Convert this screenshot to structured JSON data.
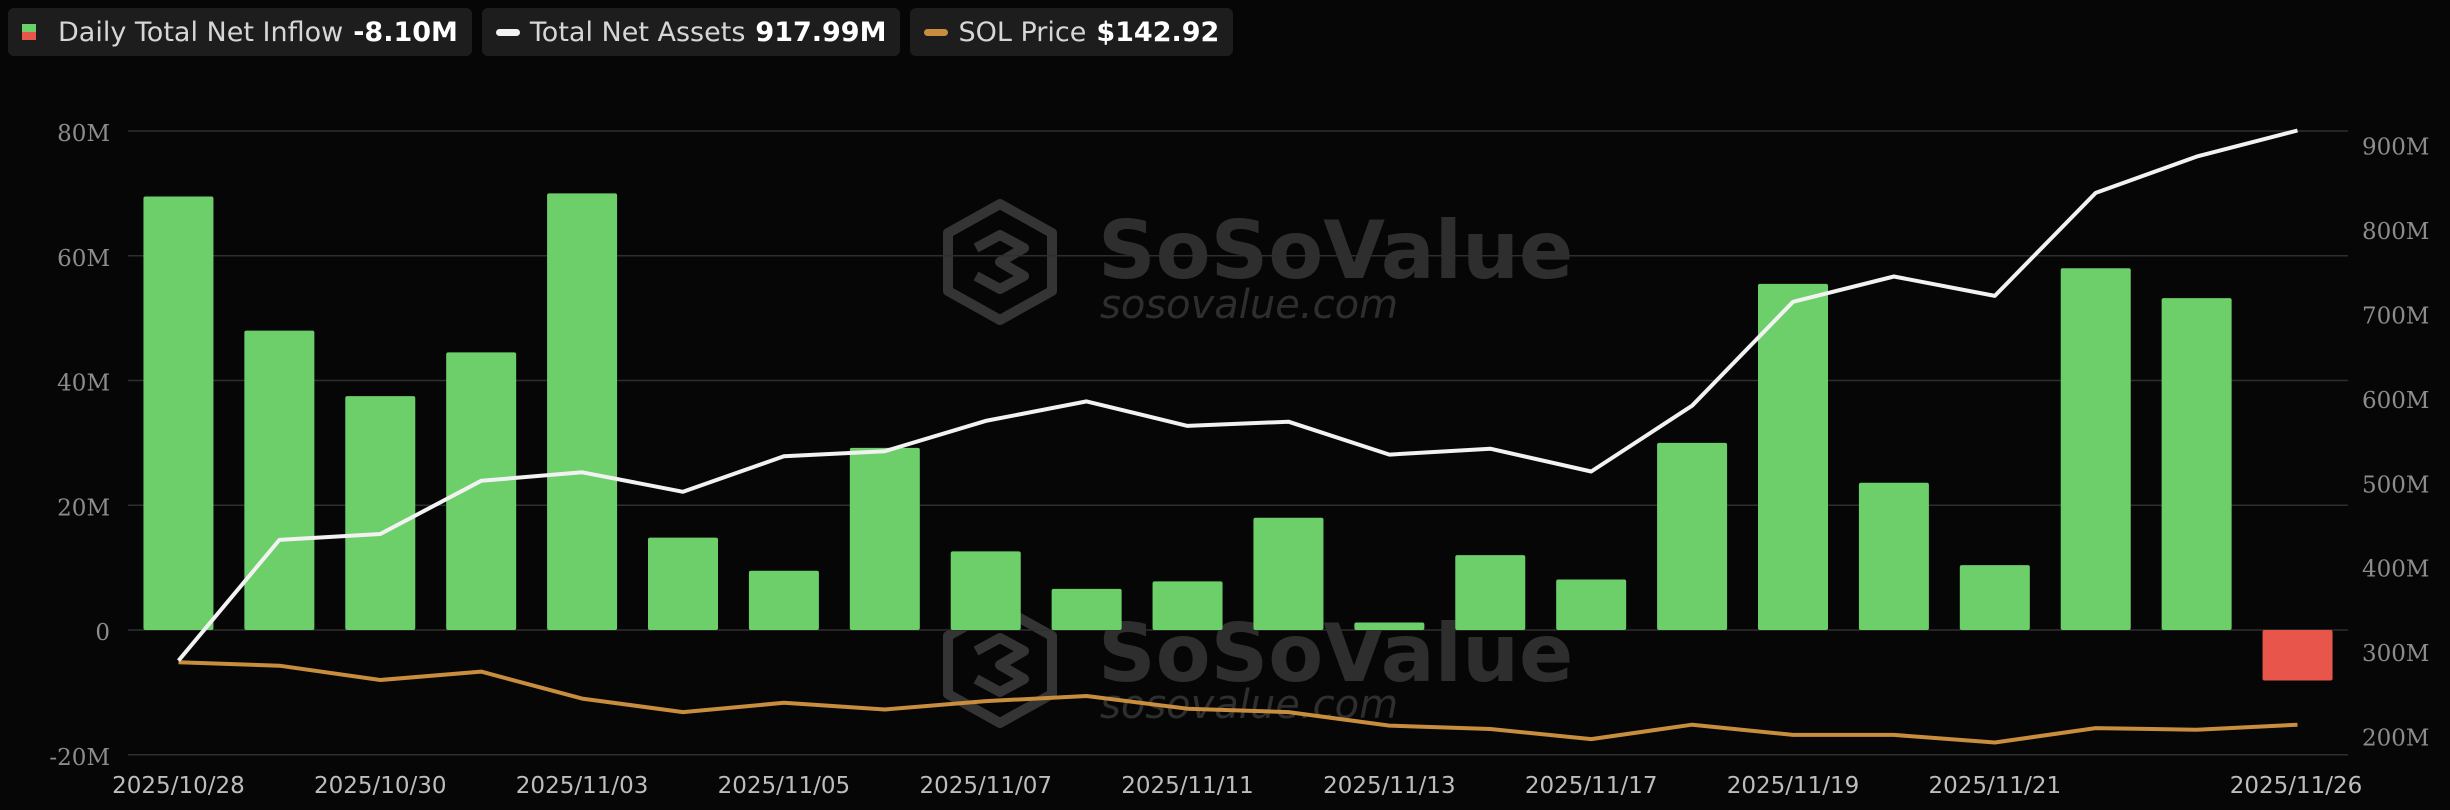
{
  "legend": {
    "inflow": {
      "label": "Daily Total Net Inflow",
      "value": "-8.10M"
    },
    "assets": {
      "label": "Total Net Assets",
      "value": "917.99M"
    },
    "sol": {
      "label": "SOL Price",
      "value": "$142.92"
    }
  },
  "watermark": {
    "name": "SoSoValue",
    "domain": "sosovalue.com"
  },
  "colors": {
    "positive": "#6ccf6a",
    "negative": "#e8554a",
    "assets": "#f2f2f2",
    "sol": "#c98d3e",
    "grid": "#2e2e2e",
    "axis_text": "#8c8c8c",
    "tick_text": "#bdbdbd"
  },
  "chart_data": {
    "type": "bar",
    "title": "",
    "x_tick_labels": [
      "2025/10/28",
      "2025/10/30",
      "2025/11/03",
      "2025/11/05",
      "2025/11/07",
      "2025/11/11",
      "2025/11/13",
      "2025/11/17",
      "2025/11/19",
      "2025/11/21",
      "2025/11/26"
    ],
    "left_axis": {
      "ticks": [
        80,
        60,
        40,
        20,
        0,
        -20
      ],
      "tick_labels": [
        "80M",
        "60M",
        "40M",
        "20M",
        "0",
        "-20M"
      ],
      "ylim": [
        -20,
        80
      ]
    },
    "right_axis": {
      "ticks": [
        900,
        800,
        700,
        600,
        500,
        400,
        300,
        200
      ],
      "tick_labels": [
        "900M",
        "800M",
        "700M",
        "600M",
        "500M",
        "400M",
        "300M",
        "200M"
      ],
      "ylim": [
        190,
        915
      ]
    },
    "grid": true,
    "series": [
      {
        "name": "Daily Total Net Inflow",
        "type": "bar",
        "axis": "left",
        "values": [
          69.5,
          48,
          37.5,
          44.5,
          70,
          14.8,
          9.5,
          29.2,
          12.6,
          6.6,
          7.8,
          18,
          1.2,
          12,
          8.1,
          30,
          55.5,
          23.6,
          10.4,
          58,
          53.2,
          -8.1
        ]
      },
      {
        "name": "Total Net Assets",
        "type": "line",
        "axis": "right",
        "values": [
          290,
          433,
          440,
          503,
          513,
          490,
          532,
          538,
          574,
          597,
          568,
          573,
          534,
          541,
          514,
          592,
          715,
          745,
          722,
          844,
          887,
          917.99
        ]
      },
      {
        "name": "SOL Price",
        "type": "line",
        "axis": "right",
        "values": [
          288,
          284,
          267,
          277,
          245,
          229,
          240,
          232,
          242,
          248,
          233,
          229,
          213,
          209,
          197,
          214,
          202,
          202,
          193,
          210,
          208,
          214
        ]
      }
    ]
  }
}
